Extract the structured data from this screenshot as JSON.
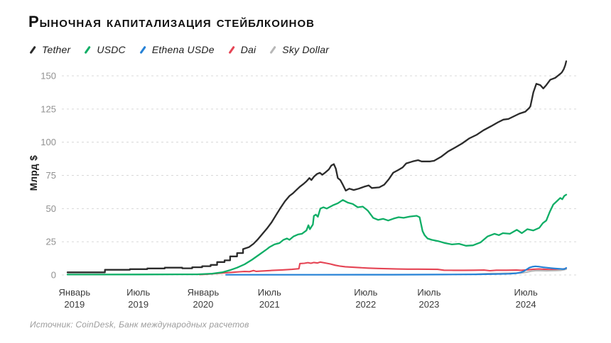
{
  "title": "Рыночная капитализация стейблкоинов",
  "source": "Источник: CoinDesk, Банк международных расчетов",
  "colors": {
    "tether": "#2b2b2b",
    "usdc": "#0fae66",
    "ethena_usde": "#2581d6",
    "dai": "#e54454",
    "sky_dollar": "#b7b7b7",
    "gridline": "#d8d8d8",
    "y_tick_text": "#909090",
    "x_tick_text": "#3b3b3b",
    "ylabel_text": "#1b1b1b"
  },
  "chart_data": {
    "type": "line",
    "title": "Рыночная капитализация стейблкоинов",
    "ylabel": "Млрд $",
    "ylim": [
      0,
      165
    ],
    "yticks": [
      0,
      25,
      50,
      75,
      100,
      125,
      150
    ],
    "grid": "horizontal dashed",
    "legend_position": "top-left",
    "x_unit": "percent of plot width (time axis, irregular spacing)",
    "xticks": [
      {
        "month": "Январь",
        "year": "2019",
        "pos": 1.4
      },
      {
        "month": "Июль",
        "year": "2019",
        "pos": 14.2
      },
      {
        "month": "Январь",
        "year": "2020",
        "pos": 27.2
      },
      {
        "month": "Июль",
        "year": "2021",
        "pos": 40.5
      },
      {
        "month": "Июль",
        "year": "2022",
        "pos": 59.8
      },
      {
        "month": "Июль",
        "year": "2023",
        "pos": 72.5
      },
      {
        "month": "Июль",
        "year": "2024",
        "pos": 91.9
      }
    ],
    "series": [
      {
        "name": "Tether",
        "color_key": "tether",
        "stroke_width": 2.3,
        "points": [
          [
            0,
            2
          ],
          [
            7.5,
            2
          ],
          [
            7.5,
            3.9
          ],
          [
            12.5,
            3.9
          ],
          [
            12.5,
            4.4
          ],
          [
            16,
            4.4
          ],
          [
            16,
            4.9
          ],
          [
            19.5,
            4.9
          ],
          [
            19.5,
            5.5
          ],
          [
            23,
            5.5
          ],
          [
            23,
            5
          ],
          [
            25,
            5
          ],
          [
            25,
            5.8
          ],
          [
            27,
            5.8
          ],
          [
            27,
            6.6
          ],
          [
            28.7,
            6.6
          ],
          [
            28.7,
            7.6
          ],
          [
            30,
            7.6
          ],
          [
            30,
            9.7
          ],
          [
            31.5,
            9.7
          ],
          [
            31.5,
            11
          ],
          [
            32.6,
            11
          ],
          [
            32.6,
            14
          ],
          [
            34,
            14
          ],
          [
            34,
            16.5
          ],
          [
            35.2,
            16.5
          ],
          [
            35.2,
            19.5
          ],
          [
            36.4,
            21
          ],
          [
            37.3,
            23.5
          ],
          [
            38.2,
            27
          ],
          [
            39.1,
            31
          ],
          [
            40,
            35
          ],
          [
            40.9,
            39.5
          ],
          [
            41.8,
            45
          ],
          [
            42.7,
            50.5
          ],
          [
            43.6,
            55.5
          ],
          [
            44.5,
            59.5
          ],
          [
            45.2,
            61.5
          ],
          [
            45.9,
            64
          ],
          [
            46.6,
            66.5
          ],
          [
            47.3,
            68.5
          ],
          [
            47.9,
            70.5
          ],
          [
            48.5,
            73
          ],
          [
            48.9,
            71.5
          ],
          [
            49.4,
            74
          ],
          [
            50,
            76
          ],
          [
            50.6,
            77
          ],
          [
            51.1,
            75.5
          ],
          [
            51.8,
            77.5
          ],
          [
            52.4,
            79.5
          ],
          [
            52.9,
            82.5
          ],
          [
            53.4,
            83.5
          ],
          [
            53.8,
            80
          ],
          [
            54.2,
            73
          ],
          [
            54.7,
            71.5
          ],
          [
            55.2,
            68
          ],
          [
            55.8,
            63.5
          ],
          [
            56.5,
            65
          ],
          [
            57.4,
            64
          ],
          [
            58.4,
            65
          ],
          [
            59.5,
            66.5
          ],
          [
            60.4,
            67.5
          ],
          [
            61,
            65.5
          ],
          [
            62.5,
            66
          ],
          [
            63.5,
            68
          ],
          [
            64.4,
            72
          ],
          [
            65.3,
            77
          ],
          [
            66.3,
            79
          ],
          [
            67.2,
            81
          ],
          [
            67.9,
            84
          ],
          [
            69.2,
            85.5
          ],
          [
            70.3,
            86.5
          ],
          [
            71,
            85.5
          ],
          [
            72.7,
            85.5
          ],
          [
            73.5,
            86
          ],
          [
            74.9,
            89
          ],
          [
            76.3,
            93
          ],
          [
            77.7,
            96
          ],
          [
            79.1,
            99
          ],
          [
            80.6,
            103
          ],
          [
            82,
            105.5
          ],
          [
            83.4,
            109
          ],
          [
            84.9,
            112
          ],
          [
            86.3,
            115
          ],
          [
            87.4,
            117
          ],
          [
            88.4,
            117.5
          ],
          [
            89.5,
            119.5
          ],
          [
            90.6,
            121.5
          ],
          [
            91.8,
            123
          ],
          [
            92.5,
            125.5
          ],
          [
            92.8,
            127
          ],
          [
            93.4,
            137.5
          ],
          [
            94,
            144
          ],
          [
            94.8,
            143
          ],
          [
            95.4,
            140.5
          ],
          [
            96,
            143
          ],
          [
            96.8,
            147
          ],
          [
            97.8,
            148.5
          ],
          [
            98.3,
            150
          ],
          [
            98.8,
            151.5
          ],
          [
            99.1,
            152.5
          ],
          [
            99.5,
            155
          ],
          [
            99.8,
            158
          ],
          [
            100,
            161
          ]
        ]
      },
      {
        "name": "USDC",
        "color_key": "usdc",
        "stroke_width": 2.3,
        "points": [
          [
            0,
            0.3
          ],
          [
            14,
            0.4
          ],
          [
            26,
            0.5
          ],
          [
            29,
            1
          ],
          [
            31,
            2
          ],
          [
            32.5,
            3.5
          ],
          [
            34,
            5.5
          ],
          [
            35.5,
            8
          ],
          [
            37,
            11.5
          ],
          [
            38.5,
            15.5
          ],
          [
            40,
            19.5
          ],
          [
            40.5,
            21
          ],
          [
            41.5,
            23
          ],
          [
            42.5,
            24
          ],
          [
            43.3,
            26.5
          ],
          [
            44,
            27.5
          ],
          [
            44.5,
            26.5
          ],
          [
            45.3,
            29
          ],
          [
            46.2,
            30.5
          ],
          [
            47,
            31
          ],
          [
            47.9,
            33.5
          ],
          [
            48.3,
            37.5
          ],
          [
            48.6,
            34.5
          ],
          [
            49.2,
            38
          ],
          [
            49.4,
            44.5
          ],
          [
            49.8,
            45.5
          ],
          [
            50.2,
            43.8
          ],
          [
            50.7,
            50
          ],
          [
            51.3,
            51
          ],
          [
            52,
            50
          ],
          [
            53.2,
            52.5
          ],
          [
            54.2,
            54
          ],
          [
            55.2,
            56.5
          ],
          [
            56.2,
            54.5
          ],
          [
            57.2,
            53.5
          ],
          [
            58.2,
            51
          ],
          [
            59.2,
            51.5
          ],
          [
            60.2,
            48.5
          ],
          [
            61.3,
            43
          ],
          [
            62.3,
            41.5
          ],
          [
            63.3,
            42.3
          ],
          [
            64.3,
            41
          ],
          [
            65.4,
            42.5
          ],
          [
            66.4,
            43.5
          ],
          [
            67.4,
            43
          ],
          [
            68.6,
            44
          ],
          [
            70,
            44.6
          ],
          [
            70.6,
            43.5
          ],
          [
            71.2,
            33
          ],
          [
            71.6,
            30
          ],
          [
            72.2,
            27.5
          ],
          [
            73,
            26.5
          ],
          [
            74.3,
            25.5
          ],
          [
            75.7,
            24
          ],
          [
            77.1,
            23
          ],
          [
            78.5,
            23.5
          ],
          [
            79.9,
            22
          ],
          [
            81.3,
            22.3
          ],
          [
            82.8,
            24.5
          ],
          [
            84.2,
            29
          ],
          [
            85.6,
            31
          ],
          [
            86.5,
            30
          ],
          [
            87.3,
            31.5
          ],
          [
            88.7,
            31
          ],
          [
            90.1,
            34
          ],
          [
            91.1,
            31.5
          ],
          [
            92.2,
            34.5
          ],
          [
            93.4,
            33.5
          ],
          [
            94.6,
            35.5
          ],
          [
            95.3,
            39
          ],
          [
            96,
            41
          ],
          [
            96.7,
            47.5
          ],
          [
            97.4,
            53
          ],
          [
            98.1,
            55.5
          ],
          [
            98.8,
            58
          ],
          [
            99.2,
            57
          ],
          [
            99.6,
            59.5
          ],
          [
            100,
            60.5
          ]
        ]
      },
      {
        "name": "Ethena USDe",
        "color_key": "ethena_usde",
        "stroke_width": 2.2,
        "points": [
          [
            31.8,
            0.15
          ],
          [
            50,
            0.15
          ],
          [
            65,
            0.2
          ],
          [
            75,
            0.3
          ],
          [
            82,
            0.5
          ],
          [
            86,
            0.7
          ],
          [
            88.5,
            0.9
          ],
          [
            90,
            1.3
          ],
          [
            90.8,
            1.8
          ],
          [
            91.4,
            2.6
          ],
          [
            92,
            4
          ],
          [
            92.6,
            5.5
          ],
          [
            93.2,
            6.2
          ],
          [
            93.8,
            6.5
          ],
          [
            94.5,
            6.3
          ],
          [
            95.3,
            5.8
          ],
          [
            96.1,
            5.5
          ],
          [
            96.9,
            5.2
          ],
          [
            97.7,
            4.9
          ],
          [
            98.5,
            4.7
          ],
          [
            99.2,
            4.5
          ],
          [
            99.6,
            4.4
          ],
          [
            100,
            5.3
          ]
        ]
      },
      {
        "name": "Dai",
        "color_key": "dai",
        "stroke_width": 2.1,
        "points": [
          [
            26.5,
            0.3
          ],
          [
            28,
            0.6
          ],
          [
            30,
            1.2
          ],
          [
            31.5,
            1.6
          ],
          [
            33,
            2
          ],
          [
            34.5,
            2.4
          ],
          [
            35.5,
            2.6
          ],
          [
            36.5,
            2.5
          ],
          [
            37.3,
            3.3
          ],
          [
            37.8,
            2.7
          ],
          [
            39,
            3
          ],
          [
            41,
            3.4
          ],
          [
            43,
            3.8
          ],
          [
            45,
            4.2
          ],
          [
            46.4,
            4.7
          ],
          [
            46.6,
            8.6
          ],
          [
            47.5,
            8.8
          ],
          [
            48.2,
            9.3
          ],
          [
            48.8,
            8.8
          ],
          [
            49.4,
            9.4
          ],
          [
            50.1,
            9
          ],
          [
            50.7,
            9.7
          ],
          [
            51.7,
            9
          ],
          [
            52.7,
            8.3
          ],
          [
            53.7,
            7.3
          ],
          [
            54.7,
            6.6
          ],
          [
            55.7,
            6.2
          ],
          [
            57.2,
            5.8
          ],
          [
            58.7,
            5.5
          ],
          [
            60.2,
            5.2
          ],
          [
            62.2,
            4.9
          ],
          [
            64.2,
            4.7
          ],
          [
            66.2,
            4.5
          ],
          [
            68.2,
            4.4
          ],
          [
            70.2,
            4.4
          ],
          [
            72.2,
            4.3
          ],
          [
            74.2,
            4.2
          ],
          [
            75.5,
            3.6
          ],
          [
            77.5,
            3.5
          ],
          [
            79.5,
            3.5
          ],
          [
            81.5,
            3.6
          ],
          [
            83.5,
            3.7
          ],
          [
            84.7,
            3.2
          ],
          [
            86,
            3.6
          ],
          [
            88,
            3.6
          ],
          [
            90,
            3.7
          ],
          [
            91,
            3.5
          ],
          [
            92.3,
            3.9
          ],
          [
            93.5,
            4.3
          ],
          [
            94.5,
            4.5
          ],
          [
            95.5,
            4.3
          ],
          [
            96.5,
            4.1
          ],
          [
            97.5,
            4
          ],
          [
            98.5,
            4.2
          ],
          [
            99.3,
            4.5
          ],
          [
            100,
            4.8
          ]
        ]
      },
      {
        "name": "Sky Dollar",
        "color_key": "sky_dollar",
        "stroke_width": 2.1,
        "points": [
          [
            82,
            0.6
          ],
          [
            83.5,
            0.9
          ],
          [
            85,
            1.2
          ],
          [
            86.5,
            1.1
          ],
          [
            88,
            1.3
          ],
          [
            89.5,
            1.4
          ],
          [
            91,
            1.5
          ],
          [
            92,
            2.1
          ],
          [
            93,
            2.9
          ],
          [
            94,
            3.3
          ],
          [
            95,
            3.2
          ],
          [
            96,
            3.1
          ],
          [
            97,
            3.2
          ],
          [
            98,
            3.3
          ],
          [
            99,
            3.5
          ],
          [
            100,
            4.3
          ]
        ]
      }
    ]
  },
  "legend": {
    "items": [
      {
        "label": "Tether",
        "color_key": "tether"
      },
      {
        "label": "USDC",
        "color_key": "usdc"
      },
      {
        "label": "Ethena USDe",
        "color_key": "ethena_usde"
      },
      {
        "label": "Dai",
        "color_key": "dai"
      },
      {
        "label": "Sky Dollar",
        "color_key": "sky_dollar"
      }
    ]
  }
}
